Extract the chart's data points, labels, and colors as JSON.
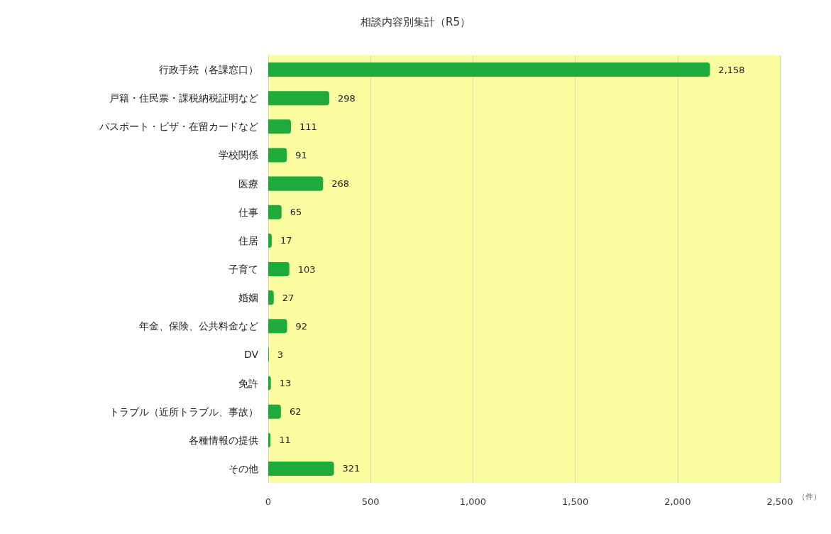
{
  "chart_data": {
    "type": "bar",
    "orientation": "horizontal",
    "title": "相談内容別集計（R5）",
    "xlabel": "（件）",
    "categories": [
      "行政手続（各課窓口）",
      "戸籍・住民票・課税納税証明など",
      "パスポート・ビザ・在留カードなど",
      "学校関係",
      "医療",
      "仕事",
      "住居",
      "子育て",
      "婚姻",
      "年金、保険、公共料金など",
      "DV",
      "免許",
      "トラブル（近所トラブル、事故）",
      "各種情報の提供",
      "その他"
    ],
    "values": [
      2158,
      298,
      111,
      91,
      268,
      65,
      17,
      103,
      27,
      92,
      3,
      13,
      62,
      11,
      321
    ],
    "value_labels": [
      "2,158",
      "298",
      "111",
      "91",
      "268",
      "65",
      "17",
      "103",
      "27",
      "92",
      "3",
      "13",
      "62",
      "11",
      "321"
    ],
    "color": "#1faa3c",
    "xlim": [
      0,
      2500
    ],
    "xticks": [
      0,
      {
        "value": 500,
        "label": "500"
      },
      {
        "value": 1000,
        "label": "1,000"
      },
      {
        "value": 1500,
        "label": "1,500"
      },
      {
        "value": 2000,
        "label": "2,000"
      },
      {
        "value": 2500,
        "label": "2,500"
      }
    ],
    "grid": "x"
  }
}
